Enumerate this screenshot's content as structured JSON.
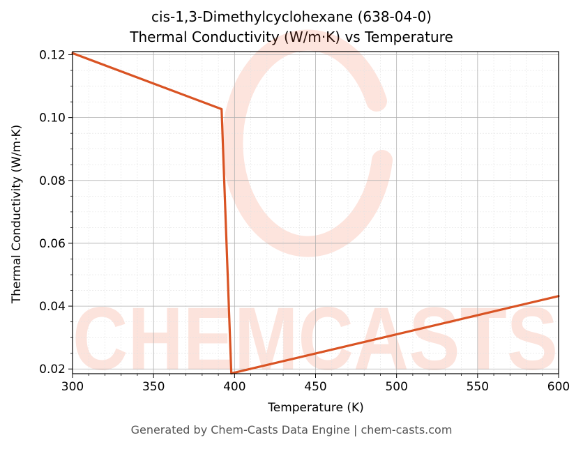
{
  "chart_data": {
    "type": "line",
    "title": "cis-1,3-Dimethylcyclohexane (638-04-0)",
    "subtitle": "Thermal Conductivity (W/m·K) vs Temperature",
    "xlabel": "Temperature (K)",
    "ylabel": "Thermal Conductivity (W/m·K)",
    "xlim": [
      300,
      600
    ],
    "ylim": [
      0.0185,
      0.121
    ],
    "x_ticks": [
      "300",
      "350",
      "400",
      "450",
      "500",
      "550",
      "600"
    ],
    "y_ticks": [
      "0.02",
      "0.04",
      "0.06",
      "0.08",
      "0.10",
      "0.12"
    ],
    "grid": true,
    "series": [
      {
        "color": "#d95323",
        "points": [
          {
            "x": 300,
            "y": 0.1205
          },
          {
            "x": 392,
            "y": 0.1027
          },
          {
            "x": 398,
            "y": 0.0186
          },
          {
            "x": 600,
            "y": 0.0432
          }
        ]
      }
    ]
  },
  "watermark": "CHEMCASTS",
  "footer": "Generated by Chem-Casts Data Engine | chem-casts.com"
}
